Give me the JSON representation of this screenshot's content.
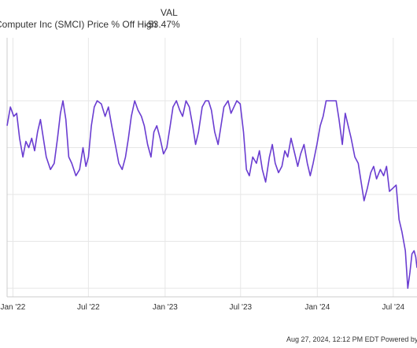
{
  "legend": {
    "header": "VAL",
    "series_name": "Computer Inc (SMCI) Price % Off High",
    "series_value": "-53.47%"
  },
  "footer": {
    "text": "Aug 27, 2024, 12:12 PM EDT Powered by"
  },
  "colors": {
    "line": "#6a3dd1",
    "grid": "#e6e6e6",
    "axis_text": "#333333"
  },
  "chart_data": {
    "type": "line",
    "title": "",
    "xlabel": "",
    "ylabel": "",
    "grid": true,
    "xlim": [
      "2021-12-18",
      "2024-08-27"
    ],
    "ylim": [
      -62,
      0
    ],
    "x_ticks": [
      {
        "date": "2022-01-01",
        "label": "Jan '22"
      },
      {
        "date": "2022-07-01",
        "label": "Jul '22"
      },
      {
        "date": "2023-01-01",
        "label": "Jan '23"
      },
      {
        "date": "2023-07-01",
        "label": "Jul '23"
      },
      {
        "date": "2024-01-01",
        "label": "Jan '24"
      },
      {
        "date": "2024-07-01",
        "label": "Jul '24"
      }
    ],
    "y_gridlines": [
      0,
      -15,
      -30,
      -45,
      -60
    ],
    "series": [
      {
        "name": "Computer Inc (SMCI) Price % Off High",
        "points": [
          [
            "2021-12-18",
            -8
          ],
          [
            "2021-12-26",
            -2
          ],
          [
            "2022-01-03",
            -5
          ],
          [
            "2022-01-10",
            -4
          ],
          [
            "2022-01-17",
            -12
          ],
          [
            "2022-01-25",
            -18
          ],
          [
            "2022-02-01",
            -13
          ],
          [
            "2022-02-08",
            -15
          ],
          [
            "2022-02-15",
            -12
          ],
          [
            "2022-02-22",
            -16
          ],
          [
            "2022-03-01",
            -10
          ],
          [
            "2022-03-08",
            -6
          ],
          [
            "2022-03-15",
            -12
          ],
          [
            "2022-03-22",
            -18
          ],
          [
            "2022-04-01",
            -22
          ],
          [
            "2022-04-10",
            -20
          ],
          [
            "2022-04-18",
            -12
          ],
          [
            "2022-04-25",
            -4
          ],
          [
            "2022-05-01",
            0
          ],
          [
            "2022-05-08",
            -6
          ],
          [
            "2022-05-15",
            -18
          ],
          [
            "2022-05-22",
            -20
          ],
          [
            "2022-06-01",
            -24
          ],
          [
            "2022-06-10",
            -22
          ],
          [
            "2022-06-18",
            -15
          ],
          [
            "2022-06-25",
            -21
          ],
          [
            "2022-07-01",
            -18
          ],
          [
            "2022-07-08",
            -8
          ],
          [
            "2022-07-15",
            -2
          ],
          [
            "2022-07-22",
            0
          ],
          [
            "2022-08-01",
            -1
          ],
          [
            "2022-08-10",
            -5
          ],
          [
            "2022-08-18",
            -2
          ],
          [
            "2022-08-26",
            -8
          ],
          [
            "2022-09-05",
            -15
          ],
          [
            "2022-09-12",
            -20
          ],
          [
            "2022-09-20",
            -22
          ],
          [
            "2022-09-28",
            -18
          ],
          [
            "2022-10-05",
            -12
          ],
          [
            "2022-10-12",
            -5
          ],
          [
            "2022-10-20",
            0
          ],
          [
            "2022-10-28",
            -3
          ],
          [
            "2022-11-05",
            -5
          ],
          [
            "2022-11-12",
            -8
          ],
          [
            "2022-11-20",
            -14
          ],
          [
            "2022-11-28",
            -18
          ],
          [
            "2022-12-05",
            -10
          ],
          [
            "2022-12-12",
            -8
          ],
          [
            "2022-12-20",
            -12
          ],
          [
            "2022-12-28",
            -17
          ],
          [
            "2023-01-05",
            -15
          ],
          [
            "2023-01-12",
            -9
          ],
          [
            "2023-01-20",
            -2
          ],
          [
            "2023-01-28",
            0
          ],
          [
            "2023-02-05",
            -3
          ],
          [
            "2023-02-12",
            -5
          ],
          [
            "2023-02-20",
            0
          ],
          [
            "2023-02-28",
            -2
          ],
          [
            "2023-03-08",
            -8
          ],
          [
            "2023-03-15",
            -14
          ],
          [
            "2023-03-22",
            -10
          ],
          [
            "2023-03-31",
            -2
          ],
          [
            "2023-04-08",
            0
          ],
          [
            "2023-04-15",
            0
          ],
          [
            "2023-04-22",
            -3
          ],
          [
            "2023-04-30",
            -10
          ],
          [
            "2023-05-08",
            -14
          ],
          [
            "2023-05-15",
            -8
          ],
          [
            "2023-05-22",
            -2
          ],
          [
            "2023-06-01",
            0
          ],
          [
            "2023-06-08",
            -4
          ],
          [
            "2023-06-15",
            -2
          ],
          [
            "2023-06-22",
            0
          ],
          [
            "2023-06-30",
            -1
          ],
          [
            "2023-07-08",
            -10
          ],
          [
            "2023-07-15",
            -22
          ],
          [
            "2023-07-22",
            -24
          ],
          [
            "2023-07-30",
            -18
          ],
          [
            "2023-08-08",
            -20
          ],
          [
            "2023-08-15",
            -16
          ],
          [
            "2023-08-22",
            -22
          ],
          [
            "2023-08-30",
            -26
          ],
          [
            "2023-09-08",
            -18
          ],
          [
            "2023-09-15",
            -14
          ],
          [
            "2023-09-22",
            -20
          ],
          [
            "2023-09-30",
            -23
          ],
          [
            "2023-10-08",
            -21
          ],
          [
            "2023-10-15",
            -16
          ],
          [
            "2023-10-22",
            -18
          ],
          [
            "2023-10-30",
            -12
          ],
          [
            "2023-11-08",
            -17
          ],
          [
            "2023-11-15",
            -21
          ],
          [
            "2023-11-22",
            -17
          ],
          [
            "2023-11-30",
            -14
          ],
          [
            "2023-12-08",
            -20
          ],
          [
            "2023-12-15",
            -24
          ],
          [
            "2023-12-22",
            -20
          ],
          [
            "2023-12-31",
            -14
          ],
          [
            "2024-01-08",
            -8
          ],
          [
            "2024-01-15",
            -5
          ],
          [
            "2024-01-22",
            0
          ],
          [
            "2024-01-31",
            0
          ],
          [
            "2024-02-08",
            0
          ],
          [
            "2024-02-15",
            0
          ],
          [
            "2024-02-22",
            -6
          ],
          [
            "2024-03-01",
            -14
          ],
          [
            "2024-03-08",
            -4
          ],
          [
            "2024-03-15",
            -8
          ],
          [
            "2024-03-22",
            -12
          ],
          [
            "2024-03-31",
            -18
          ],
          [
            "2024-04-08",
            -20
          ],
          [
            "2024-04-15",
            -26
          ],
          [
            "2024-04-22",
            -32
          ],
          [
            "2024-04-30",
            -28
          ],
          [
            "2024-05-08",
            -23
          ],
          [
            "2024-05-15",
            -21
          ],
          [
            "2024-05-22",
            -25
          ],
          [
            "2024-05-31",
            -22
          ],
          [
            "2024-06-08",
            -24
          ],
          [
            "2024-06-15",
            -21
          ],
          [
            "2024-06-22",
            -29
          ],
          [
            "2024-06-30",
            -28
          ],
          [
            "2024-07-08",
            -27
          ],
          [
            "2024-07-15",
            -38
          ],
          [
            "2024-07-22",
            -42
          ],
          [
            "2024-07-30",
            -48
          ],
          [
            "2024-08-05",
            -60
          ],
          [
            "2024-08-10",
            -55
          ],
          [
            "2024-08-15",
            -49
          ],
          [
            "2024-08-20",
            -48
          ],
          [
            "2024-08-24",
            -50
          ],
          [
            "2024-08-27",
            -53.47
          ]
        ]
      }
    ]
  }
}
